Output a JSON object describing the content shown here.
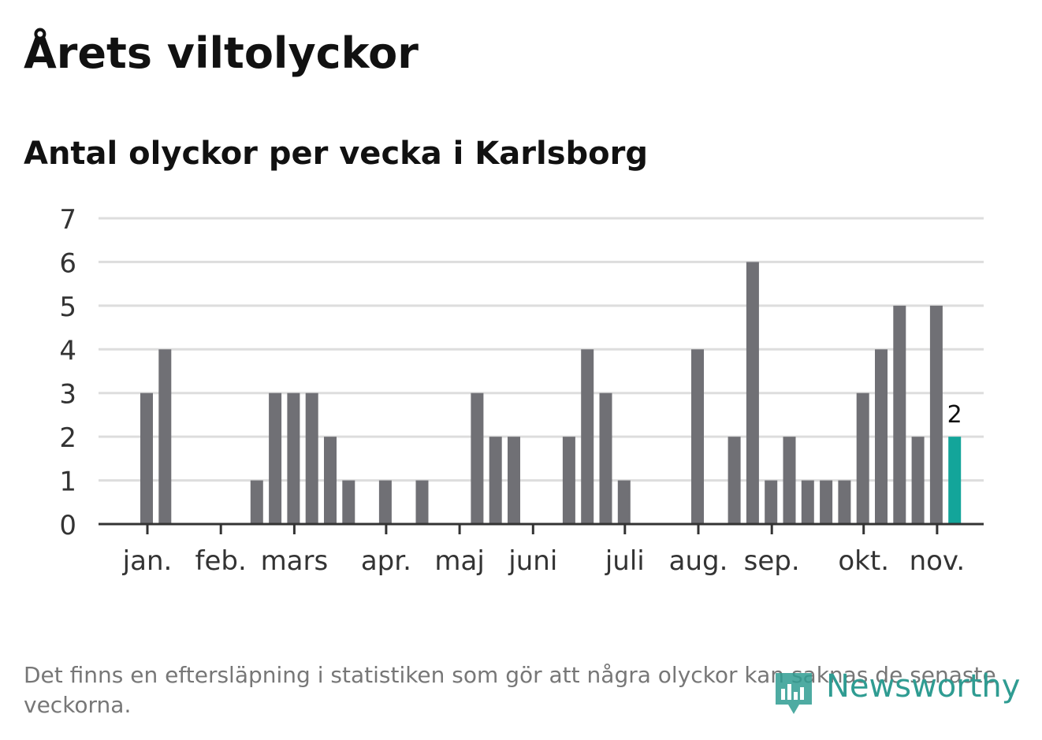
{
  "title": "Årets viltolyckor",
  "subtitle": "Antal olyckor per vecka i Karlsborg",
  "footnote": "Det finns en eftersläpning i statistiken som gör att några olyckor kan saknas de senaste veckorna.",
  "brand": "Newsworthy",
  "colors": {
    "bar": "#707075",
    "highlight": "#13a59a",
    "grid": "#dddddd",
    "axis": "#333333",
    "brand": "#2f9c92"
  },
  "chart_data": {
    "type": "bar",
    "ylim": [
      0,
      7
    ],
    "yticks": [
      0,
      1,
      2,
      3,
      4,
      5,
      6,
      7
    ],
    "grid": true,
    "week_range": [
      0,
      48
    ],
    "month_ticks": [
      {
        "label": "jan.",
        "week": 1.5
      },
      {
        "label": "feb.",
        "week": 5.5
      },
      {
        "label": "mars",
        "week": 9.5
      },
      {
        "label": "apr.",
        "week": 14.5
      },
      {
        "label": "maj",
        "week": 18.5
      },
      {
        "label": "juni",
        "week": 22.5
      },
      {
        "label": "juli",
        "week": 27.5
      },
      {
        "label": "aug.",
        "week": 31.5
      },
      {
        "label": "sep.",
        "week": 35.5
      },
      {
        "label": "okt.",
        "week": 40.5
      },
      {
        "label": "nov.",
        "week": 44.5
      }
    ],
    "values": [
      3,
      4,
      0,
      0,
      0,
      0,
      1,
      3,
      3,
      3,
      2,
      1,
      0,
      1,
      0,
      1,
      0,
      0,
      3,
      2,
      2,
      0,
      0,
      2,
      4,
      3,
      1,
      0,
      0,
      0,
      4,
      0,
      2,
      6,
      1,
      2,
      1,
      1,
      1,
      3,
      4,
      5,
      2,
      5,
      2
    ],
    "highlight_index": 44,
    "highlight_label": "2"
  }
}
